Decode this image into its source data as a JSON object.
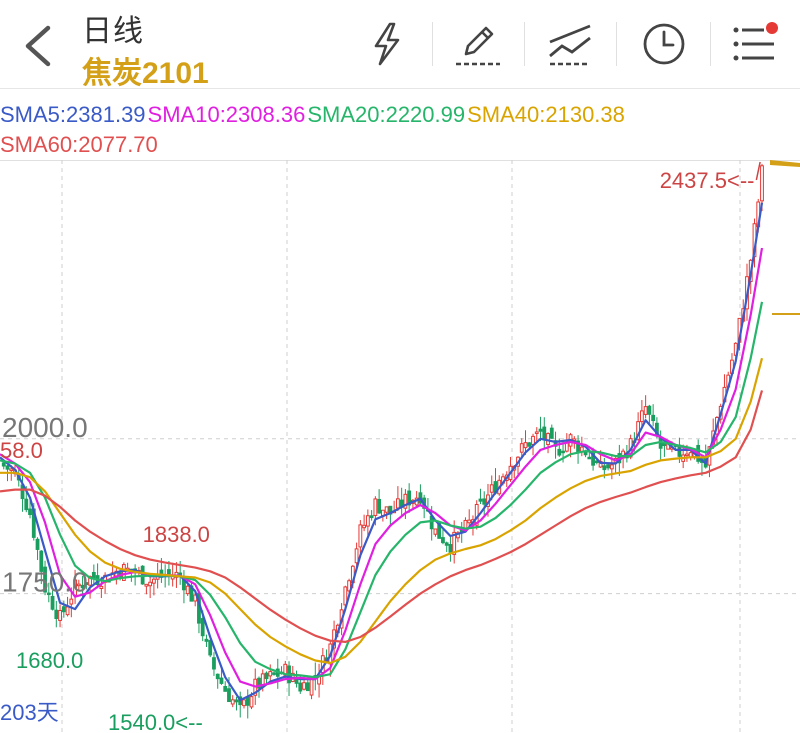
{
  "header": {
    "period_label": "日线",
    "instrument": "焦炭2101"
  },
  "toolbar": {
    "icons": [
      "lightning-icon",
      "draw-pencil-icon",
      "trend-lines-icon",
      "clock-icon",
      "menu-icon"
    ]
  },
  "sma_legend": [
    {
      "label": "SMA5:2381.39",
      "color": "#3a5bc7"
    },
    {
      "label": "SMA10:2308.36",
      "color": "#e020e0"
    },
    {
      "label": "SMA20:2220.99",
      "color": "#26b56a"
    },
    {
      "label": "SMA40:2130.38",
      "color": "#d9a400"
    },
    {
      "label": "SMA60:2077.70",
      "color": "#e05050"
    }
  ],
  "colors": {
    "up": "#e53935",
    "down": "#1a9e5f",
    "grid": "#cfcfcf",
    "axis_text": "#777777",
    "marker": "#d4a017"
  },
  "chart_data": {
    "type": "line",
    "title": "",
    "y_ticks": [
      "2000.0",
      "1750.0"
    ],
    "ylim": [
      1525,
      2450
    ],
    "annotations": {
      "high": "2437.5<--",
      "local_high": "1838.0",
      "left_value": "58.0",
      "low_left": "1680.0",
      "low": "1540.0<--",
      "days": "203天"
    },
    "x": [
      0,
      4,
      8,
      12,
      16,
      20,
      24,
      28,
      32,
      36,
      40,
      44,
      48,
      52,
      56,
      60,
      64,
      68,
      72,
      76,
      80,
      84,
      88,
      92,
      96,
      100,
      104,
      108,
      112,
      116,
      120,
      124,
      128,
      132,
      136,
      140,
      144,
      148,
      152,
      156,
      160,
      164,
      168,
      172,
      176,
      180,
      184,
      188,
      192,
      196,
      200,
      203
    ],
    "close": [
      1960,
      1945,
      1880,
      1760,
      1710,
      1760,
      1775,
      1775,
      1790,
      1785,
      1770,
      1780,
      1780,
      1735,
      1640,
      1595,
      1560,
      1600,
      1615,
      1625,
      1600,
      1615,
      1665,
      1760,
      1850,
      1895,
      1880,
      1900,
      1910,
      1850,
      1830,
      1855,
      1890,
      1925,
      1960,
      1990,
      2010,
      1980,
      2000,
      1980,
      1950,
      1960,
      1990,
      2050,
      1985,
      1975,
      1985,
      1955,
      2060,
      2150,
      2290,
      2430
    ],
    "series": [
      {
        "name": "SMA5",
        "values": [
          1970,
          1950,
          1905,
          1820,
          1735,
          1725,
          1760,
          1778,
          1786,
          1788,
          1778,
          1778,
          1779,
          1754,
          1680,
          1615,
          1578,
          1590,
          1608,
          1616,
          1612,
          1612,
          1650,
          1725,
          1812,
          1870,
          1880,
          1893,
          1903,
          1868,
          1843,
          1850,
          1880,
          1913,
          1945,
          1978,
          2000,
          1995,
          1998,
          1987,
          1961,
          1960,
          1982,
          2030,
          2002,
          1982,
          1982,
          1960,
          2040,
          2125,
          2265,
          2381
        ]
      },
      {
        "name": "SMA10",
        "values": [
          1975,
          1960,
          1930,
          1865,
          1780,
          1745,
          1752,
          1770,
          1780,
          1785,
          1781,
          1780,
          1779,
          1765,
          1715,
          1655,
          1608,
          1600,
          1605,
          1612,
          1614,
          1612,
          1630,
          1690,
          1765,
          1830,
          1860,
          1880,
          1893,
          1880,
          1860,
          1852,
          1868,
          1895,
          1925,
          1955,
          1982,
          1990,
          1995,
          1990,
          1975,
          1965,
          1975,
          2010,
          2003,
          1990,
          1983,
          1970,
          2015,
          2080,
          2200,
          2308
        ]
      },
      {
        "name": "SMA20",
        "values": [
          1965,
          1960,
          1945,
          1905,
          1845,
          1795,
          1775,
          1770,
          1775,
          1778,
          1779,
          1779,
          1778,
          1772,
          1748,
          1712,
          1670,
          1640,
          1628,
          1620,
          1618,
          1615,
          1620,
          1660,
          1720,
          1780,
          1818,
          1845,
          1865,
          1868,
          1860,
          1855,
          1858,
          1872,
          1893,
          1918,
          1945,
          1962,
          1975,
          1980,
          1978,
          1972,
          1972,
          1990,
          1995,
          1990,
          1985,
          1978,
          1995,
          2035,
          2130,
          2221
        ]
      },
      {
        "name": "SMA40",
        "values": [
          1945,
          1945,
          1938,
          1915,
          1880,
          1845,
          1818,
          1800,
          1790,
          1785,
          1782,
          1780,
          1778,
          1776,
          1768,
          1750,
          1725,
          1700,
          1680,
          1665,
          1652,
          1642,
          1638,
          1648,
          1672,
          1705,
          1738,
          1765,
          1788,
          1805,
          1815,
          1822,
          1828,
          1838,
          1852,
          1868,
          1888,
          1905,
          1920,
          1932,
          1940,
          1944,
          1948,
          1958,
          1965,
          1968,
          1970,
          1970,
          1980,
          2000,
          2060,
          2130
        ]
      },
      {
        "name": "SMA60",
        "values": [
          1915,
          1918,
          1918,
          1908,
          1890,
          1868,
          1850,
          1835,
          1822,
          1812,
          1805,
          1800,
          1796,
          1792,
          1786,
          1776,
          1760,
          1742,
          1724,
          1708,
          1694,
          1682,
          1674,
          1672,
          1680,
          1695,
          1713,
          1732,
          1750,
          1765,
          1778,
          1788,
          1796,
          1806,
          1817,
          1830,
          1845,
          1860,
          1875,
          1888,
          1898,
          1906,
          1913,
          1922,
          1930,
          1936,
          1941,
          1945,
          1955,
          1970,
          2015,
          2078
        ]
      }
    ]
  }
}
